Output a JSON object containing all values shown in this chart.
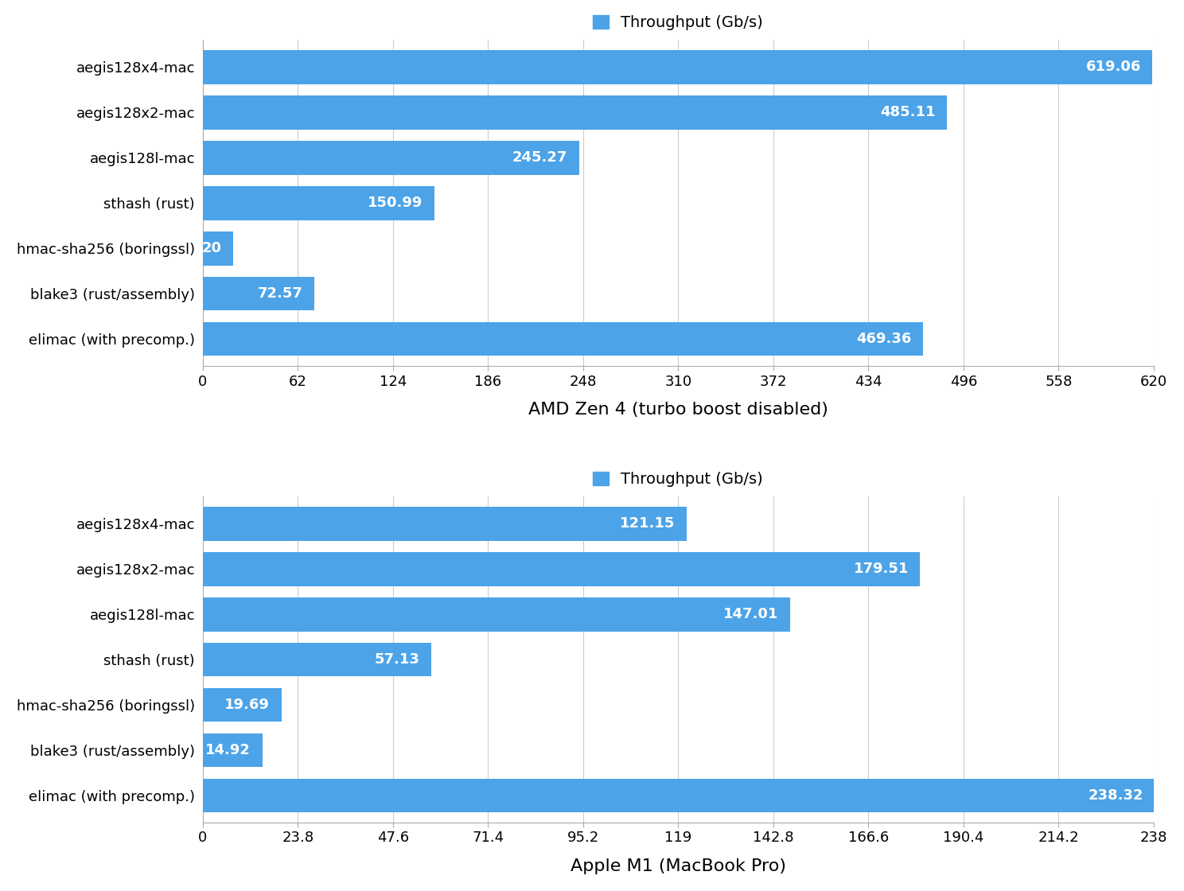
{
  "chart1": {
    "categories": [
      "aegis128x4-mac",
      "aegis128x2-mac",
      "aegis128l-mac",
      "sthash (rust)",
      "hmac-sha256 (boringssl)",
      "blake3 (rust/assembly)",
      "elimac (with precomp.)"
    ],
    "values": [
      619.06,
      485.11,
      245.27,
      150.99,
      20,
      72.57,
      469.36
    ],
    "xlabel": "AMD Zen 4 (turbo boost disabled)",
    "xlim": [
      0,
      620
    ],
    "xticks": [
      0,
      62,
      124,
      186,
      248,
      310,
      372,
      434,
      496,
      558,
      620
    ]
  },
  "chart2": {
    "categories": [
      "aegis128x4-mac",
      "aegis128x2-mac",
      "aegis128l-mac",
      "sthash (rust)",
      "hmac-sha256 (boringssl)",
      "blake3 (rust/assembly)",
      "elimac (with precomp.)"
    ],
    "values": [
      121.15,
      179.51,
      147.01,
      57.13,
      19.69,
      14.92,
      238.32
    ],
    "xlabel": "Apple M1 (MacBook Pro)",
    "xlim": [
      0,
      238
    ],
    "xticks": [
      0,
      23.8,
      47.6,
      71.4,
      95.2,
      119,
      142.8,
      166.6,
      190.4,
      214.2,
      238
    ]
  },
  "bar_color": "#4CA3E8",
  "legend_label": "Throughput (Gb/s)",
  "background_color": "#ffffff",
  "label_fontsize": 13,
  "xlabel_fontsize": 16,
  "value_fontsize": 13,
  "legend_fontsize": 14,
  "bar_height": 0.75
}
